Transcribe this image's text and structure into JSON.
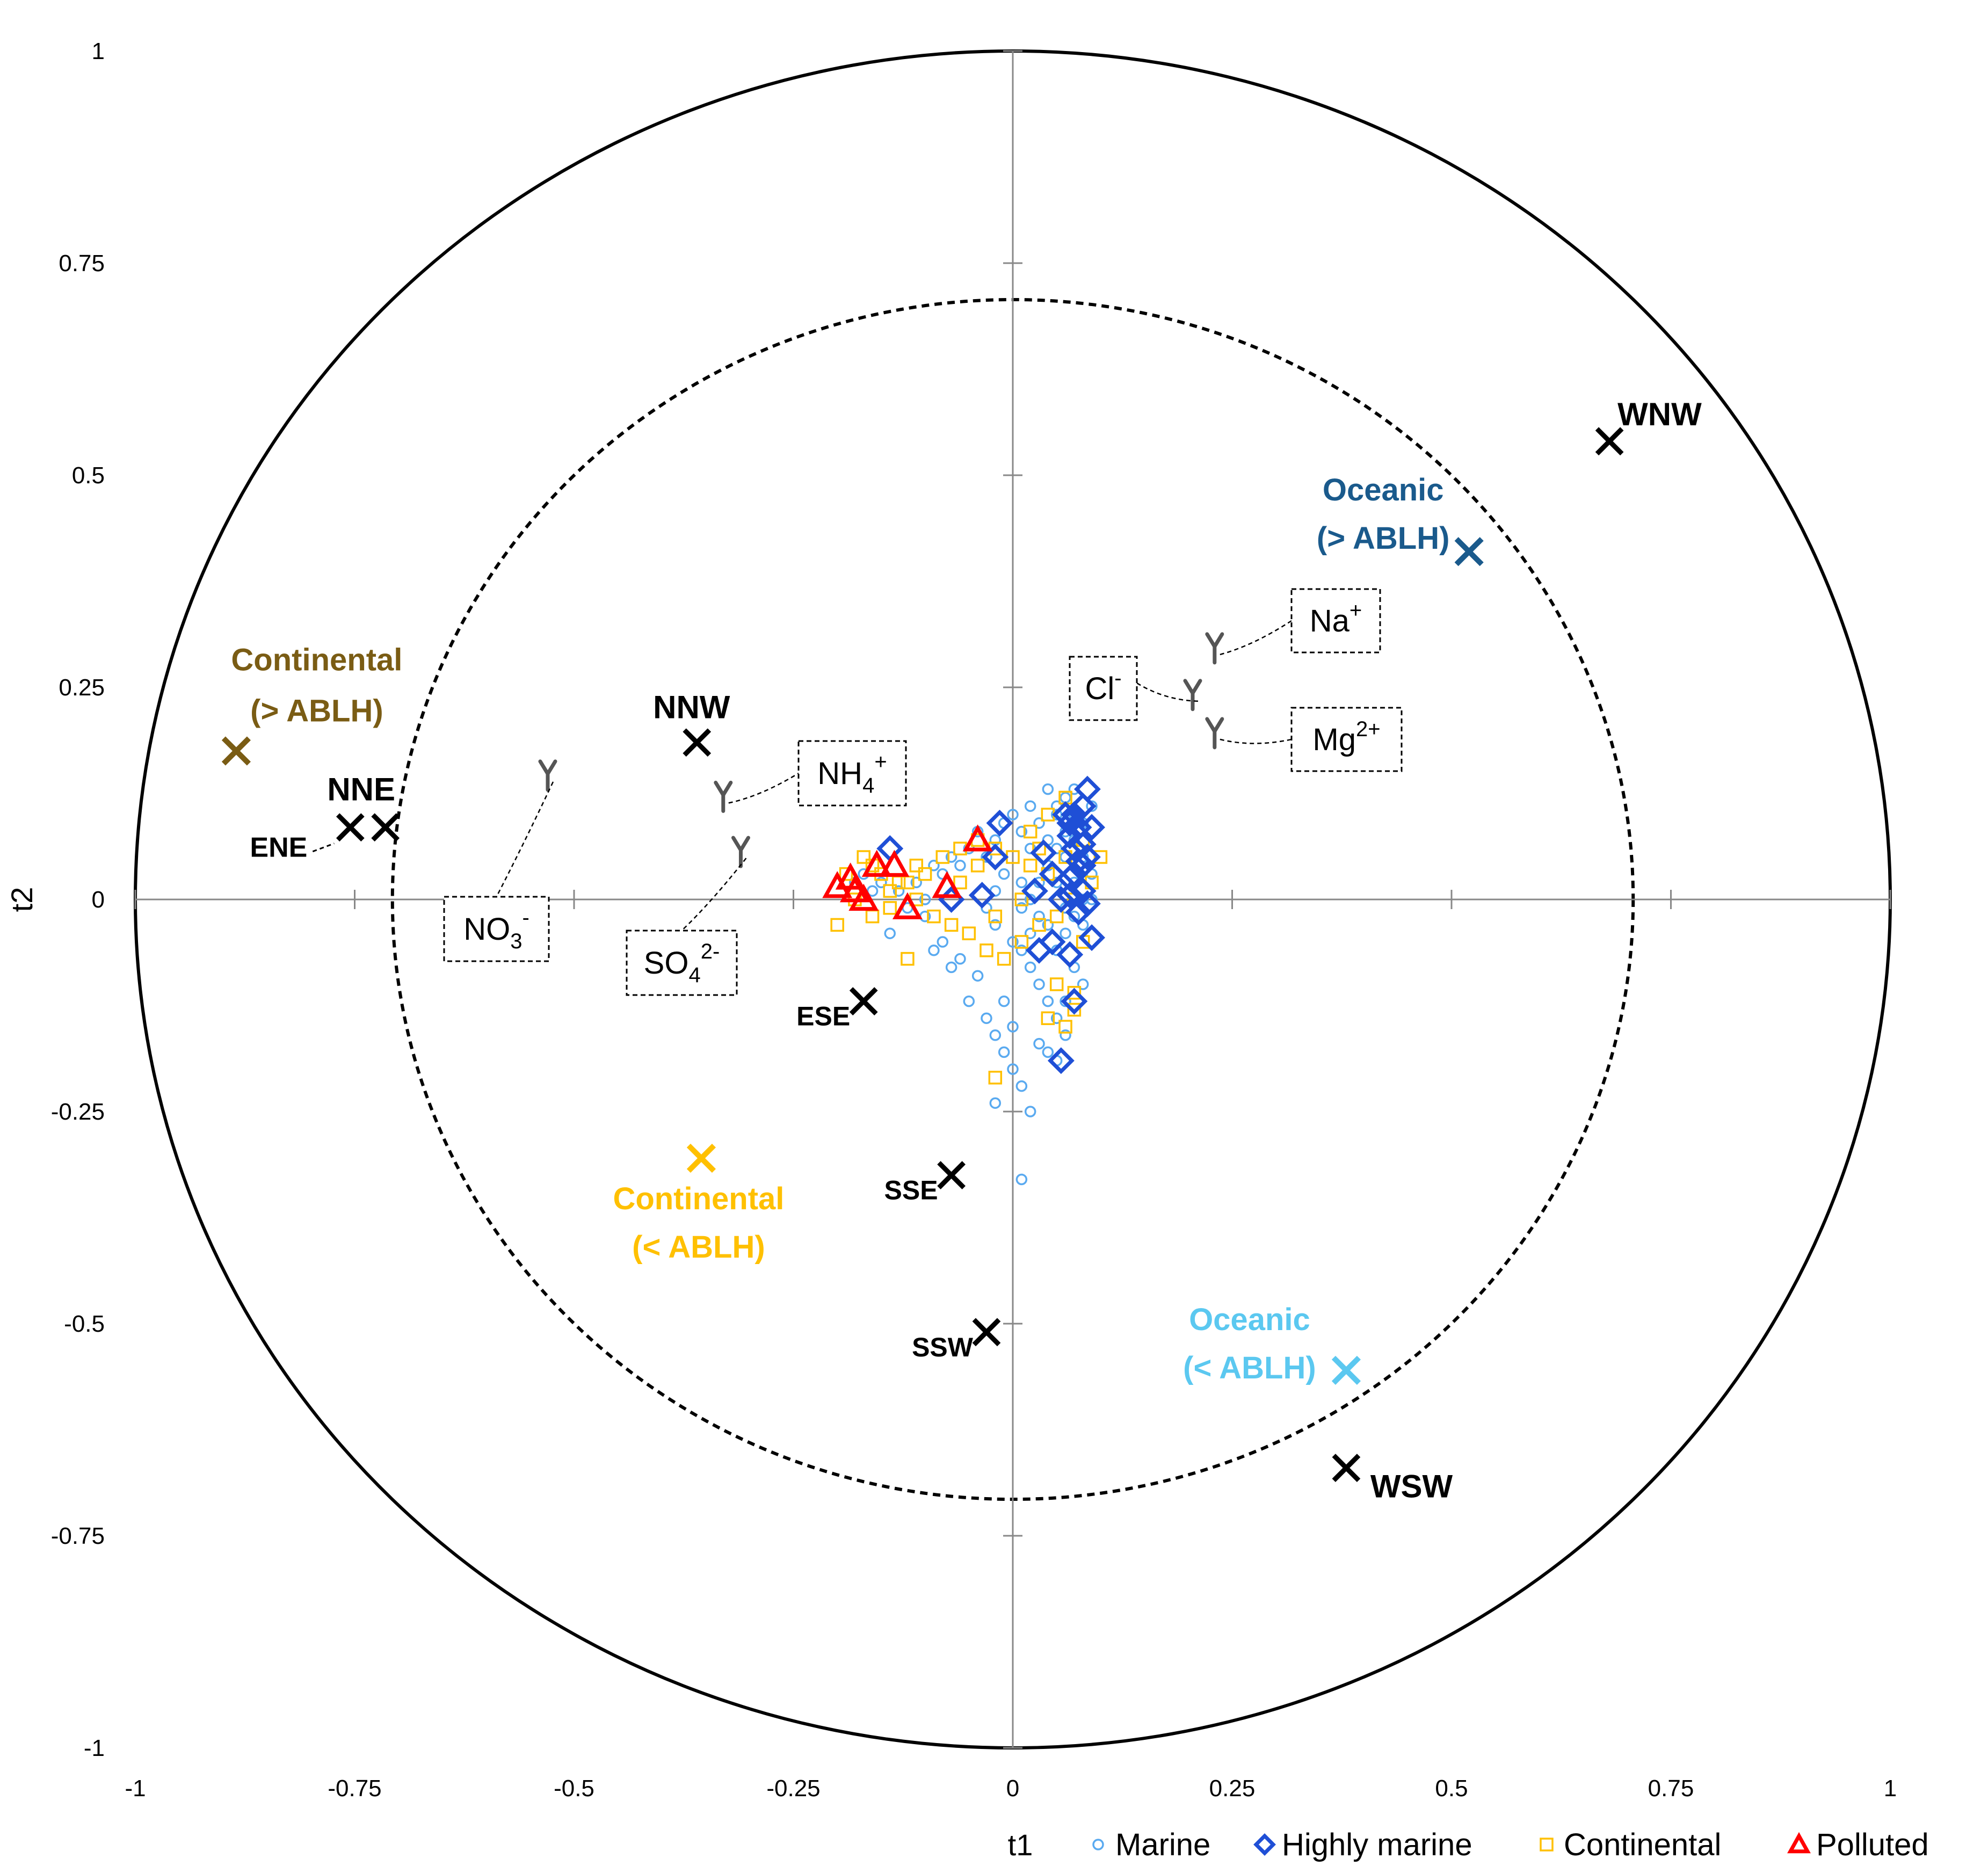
{
  "colors": {
    "marine": "#5aaaf0",
    "highly_marine": "#1f4fd6",
    "continental_pts": "#ffc000",
    "polluted": "#ff0000",
    "wind": "#000000",
    "cont_above": "#7a5c14",
    "cont_below": "#ffc000",
    "ocean_above": "#1a5a8c",
    "ocean_below": "#5bc8f0",
    "ion_symbol": "#555555"
  },
  "chart_data": {
    "type": "scatter",
    "title": "",
    "xlabel": "t1",
    "ylabel": "t2",
    "xlim": [
      -1,
      1
    ],
    "ylim": [
      -1,
      1
    ],
    "x_ticks": [
      -1,
      -0.75,
      -0.5,
      -0.25,
      0,
      0.25,
      0.5,
      0.75,
      1
    ],
    "y_ticks": [
      -1,
      -0.75,
      -0.5,
      -0.25,
      0,
      0.25,
      0.5,
      0.75,
      1
    ],
    "x_tick_labels": [
      "-1",
      "-0.75",
      "-0.5",
      "-0.25",
      "0",
      "0.25",
      "0.5",
      "0.75",
      "1"
    ],
    "y_tick_labels": [
      "-1",
      "-0.75",
      "-0.5",
      "-0.25",
      "0",
      "0.25",
      "0.5",
      "0.75",
      "1"
    ],
    "circles": [
      {
        "name": "unit-circle",
        "radius": 1,
        "style": "solid"
      },
      {
        "name": "half-variance-circle",
        "radius": 0.707,
        "style": "dashed"
      }
    ],
    "wind_sectors": [
      {
        "label": "WNW",
        "x": 0.68,
        "y": 0.54
      },
      {
        "label": "NNW",
        "x": -0.36,
        "y": 0.185
      },
      {
        "label": "NNE",
        "x": -0.715,
        "y": 0.085
      },
      {
        "label": "ENE",
        "x": -0.755,
        "y": 0.085
      },
      {
        "label": "ESE",
        "x": -0.17,
        "y": -0.12
      },
      {
        "label": "SSE",
        "x": -0.07,
        "y": -0.325
      },
      {
        "label": "SSW",
        "x": -0.03,
        "y": -0.51
      },
      {
        "label": "WSW",
        "x": 0.38,
        "y": -0.67
      }
    ],
    "air_mass_classes": [
      {
        "key": "cont_above",
        "line1": "Continental",
        "line2": "(> ABLH)",
        "x": -0.885,
        "y": 0.175
      },
      {
        "key": "cont_below",
        "line1": "Continental",
        "line2": "(< ABLH)",
        "x": -0.355,
        "y": -0.305
      },
      {
        "key": "ocean_above",
        "line1": "Oceanic",
        "line2": "(> ABLH)",
        "x": 0.52,
        "y": 0.41
      },
      {
        "key": "ocean_below",
        "line1": "Oceanic",
        "line2": "(< ABLH)",
        "x": 0.38,
        "y": -0.555
      }
    ],
    "ions": [
      {
        "name": "Na",
        "main": "Na",
        "sup": "+",
        "sub": "",
        "x": 0.23,
        "y": 0.295
      },
      {
        "name": "Cl",
        "main": "Cl",
        "sup": "-",
        "sub": "",
        "x": 0.205,
        "y": 0.24
      },
      {
        "name": "Mg",
        "main": "Mg",
        "sup": "2+",
        "sub": "",
        "x": 0.23,
        "y": 0.195
      },
      {
        "name": "NH4",
        "main": "NH",
        "sup": "+",
        "sub": "4",
        "x": -0.33,
        "y": 0.12
      },
      {
        "name": "NO3",
        "main": "NO",
        "sup": "-",
        "sub": "3",
        "x": -0.53,
        "y": 0.145
      },
      {
        "name": "SO4",
        "main": "SO",
        "sup": "2-",
        "sub": "4",
        "x": -0.31,
        "y": 0.055
      }
    ],
    "series": [
      {
        "name": "Marine",
        "symbol": "circle",
        "points": [
          [
            0.0,
            0.1
          ],
          [
            -0.01,
            0.09
          ],
          [
            0.01,
            0.08
          ],
          [
            -0.02,
            0.07
          ],
          [
            0.02,
            0.06
          ],
          [
            -0.03,
            0.05
          ],
          [
            -0.05,
            0.06
          ],
          [
            -0.07,
            0.05
          ],
          [
            -0.09,
            0.04
          ],
          [
            -0.11,
            0.02
          ],
          [
            -0.13,
            0.01
          ],
          [
            -0.15,
            0.02
          ],
          [
            -0.17,
            0.03
          ],
          [
            -0.12,
            -0.01
          ],
          [
            -0.1,
            -0.02
          ],
          [
            -0.08,
            -0.05
          ],
          [
            -0.06,
            -0.07
          ],
          [
            -0.04,
            -0.09
          ],
          [
            -0.05,
            -0.12
          ],
          [
            -0.03,
            -0.14
          ],
          [
            -0.02,
            -0.16
          ],
          [
            -0.01,
            -0.18
          ],
          [
            0.0,
            -0.2
          ],
          [
            0.01,
            -0.22
          ],
          [
            0.02,
            -0.25
          ],
          [
            -0.02,
            -0.24
          ],
          [
            0.01,
            -0.33
          ],
          [
            0.0,
            -0.05
          ],
          [
            0.01,
            -0.06
          ],
          [
            0.02,
            -0.08
          ],
          [
            0.03,
            -0.1
          ],
          [
            0.04,
            -0.12
          ],
          [
            0.05,
            -0.14
          ],
          [
            0.06,
            -0.16
          ],
          [
            0.04,
            -0.18
          ],
          [
            0.03,
            0.02
          ],
          [
            0.04,
            0.04
          ],
          [
            0.05,
            0.06
          ],
          [
            0.06,
            0.08
          ],
          [
            0.07,
            0.1
          ],
          [
            0.06,
            0.12
          ],
          [
            0.07,
            0.13
          ],
          [
            0.08,
            0.05
          ],
          [
            0.09,
            0.03
          ],
          [
            0.08,
            0.0
          ],
          [
            0.07,
            -0.02
          ],
          [
            0.06,
            -0.04
          ],
          [
            0.05,
            -0.06
          ],
          [
            0.04,
            -0.03
          ],
          [
            0.03,
            -0.02
          ],
          [
            0.02,
            0.0
          ],
          [
            0.01,
            0.02
          ],
          [
            -0.01,
            0.03
          ],
          [
            -0.02,
            0.01
          ],
          [
            -0.03,
            -0.01
          ],
          [
            0.05,
            0.1
          ],
          [
            0.06,
            0.05
          ],
          [
            0.07,
            0.07
          ],
          [
            0.08,
            0.09
          ],
          [
            0.09,
            0.11
          ],
          [
            0.05,
            0.02
          ],
          [
            0.06,
            -0.01
          ],
          [
            0.07,
            -0.08
          ],
          [
            0.08,
            -0.1
          ],
          [
            0.06,
            -0.12
          ],
          [
            0.04,
            0.07
          ],
          [
            0.03,
            0.09
          ],
          [
            0.02,
            0.11
          ],
          [
            -0.04,
            0.08
          ],
          [
            -0.06,
            0.04
          ],
          [
            -0.08,
            0.03
          ],
          [
            -0.1,
            0.0
          ],
          [
            -0.14,
            -0.04
          ],
          [
            -0.09,
            -0.06
          ],
          [
            -0.07,
            -0.08
          ],
          [
            -0.01,
            -0.12
          ],
          [
            0.0,
            -0.15
          ],
          [
            0.03,
            -0.17
          ],
          [
            0.05,
            -0.19
          ],
          [
            -0.16,
            0.01
          ],
          [
            -0.18,
            0.02
          ],
          [
            0.09,
            0.0
          ],
          [
            0.08,
            -0.03
          ],
          [
            0.07,
            0.02
          ],
          [
            0.06,
            0.09
          ],
          [
            0.05,
            0.11
          ],
          [
            0.04,
            0.13
          ],
          [
            -0.02,
            -0.03
          ],
          [
            0.01,
            -0.01
          ],
          [
            0.02,
            -0.04
          ]
        ]
      },
      {
        "name": "Highly marine",
        "symbol": "diamond",
        "points": [
          [
            0.085,
            0.13
          ],
          [
            0.07,
            0.1
          ],
          [
            0.065,
            0.09
          ],
          [
            0.075,
            0.085
          ],
          [
            0.08,
            0.11
          ],
          [
            0.065,
            0.075
          ],
          [
            0.09,
            0.085
          ],
          [
            0.07,
            0.06
          ],
          [
            0.08,
            0.065
          ],
          [
            0.075,
            0.045
          ],
          [
            0.065,
            0.025
          ],
          [
            0.08,
            0.01
          ],
          [
            0.085,
            -0.005
          ],
          [
            0.075,
            -0.015
          ],
          [
            0.09,
            -0.045
          ],
          [
            0.065,
            -0.065
          ],
          [
            0.07,
            -0.12
          ],
          [
            0.055,
            -0.19
          ],
          [
            0.035,
            0.055
          ],
          [
            0.045,
            0.03
          ],
          [
            0.025,
            0.01
          ],
          [
            0.055,
            0.0
          ],
          [
            0.03,
            -0.06
          ],
          [
            0.045,
            -0.05
          ],
          [
            0.065,
            0.005
          ],
          [
            -0.015,
            0.09
          ],
          [
            -0.02,
            0.05
          ],
          [
            -0.035,
            0.005
          ],
          [
            -0.07,
            0.0
          ],
          [
            -0.14,
            0.06
          ],
          [
            0.08,
            0.04
          ],
          [
            0.07,
            0.03
          ],
          [
            0.085,
            0.05
          ],
          [
            0.06,
            0.1
          ]
        ]
      },
      {
        "name": "Continental",
        "symbol": "square",
        "points": [
          [
            -0.2,
            -0.03
          ],
          [
            -0.18,
            0.0
          ],
          [
            -0.16,
            -0.02
          ],
          [
            -0.14,
            0.01
          ],
          [
            -0.12,
            0.02
          ],
          [
            -0.1,
            0.03
          ],
          [
            -0.08,
            0.05
          ],
          [
            -0.06,
            0.06
          ],
          [
            -0.04,
            0.07
          ],
          [
            -0.02,
            0.06
          ],
          [
            0.0,
            0.05
          ],
          [
            0.02,
            0.04
          ],
          [
            0.04,
            0.03
          ],
          [
            0.06,
            0.05
          ],
          [
            0.08,
            0.07
          ],
          [
            0.1,
            0.05
          ],
          [
            -0.17,
            0.05
          ],
          [
            -0.15,
            0.03
          ],
          [
            -0.13,
            0.02
          ],
          [
            -0.11,
            0.0
          ],
          [
            -0.09,
            -0.02
          ],
          [
            -0.07,
            -0.03
          ],
          [
            -0.05,
            -0.04
          ],
          [
            -0.03,
            -0.06
          ],
          [
            -0.01,
            -0.07
          ],
          [
            0.01,
            -0.05
          ],
          [
            0.03,
            -0.03
          ],
          [
            0.05,
            -0.02
          ],
          [
            0.07,
            0.0
          ],
          [
            0.06,
            0.12
          ],
          [
            0.04,
            0.1
          ],
          [
            0.02,
            0.08
          ],
          [
            -0.12,
            -0.07
          ],
          [
            0.07,
            -0.13
          ],
          [
            0.06,
            -0.15
          ],
          [
            0.07,
            -0.11
          ],
          [
            -0.02,
            -0.21
          ],
          [
            0.04,
            -0.14
          ],
          [
            0.05,
            -0.1
          ],
          [
            -0.06,
            0.02
          ],
          [
            -0.04,
            0.04
          ],
          [
            -0.16,
            0.04
          ],
          [
            -0.19,
            0.03
          ],
          [
            0.03,
            0.06
          ],
          [
            0.01,
            0.0
          ],
          [
            0.09,
            0.02
          ],
          [
            0.08,
            -0.05
          ],
          [
            -0.02,
            -0.02
          ],
          [
            -0.11,
            0.04
          ],
          [
            -0.14,
            -0.01
          ]
        ]
      },
      {
        "name": "Polluted",
        "symbol": "triangle",
        "points": [
          [
            -0.2,
            0.015
          ],
          [
            -0.185,
            0.025
          ],
          [
            -0.18,
            0.01
          ],
          [
            -0.17,
            0.0
          ],
          [
            -0.155,
            0.04
          ],
          [
            -0.135,
            0.04
          ],
          [
            -0.12,
            -0.01
          ],
          [
            -0.075,
            0.015
          ],
          [
            -0.04,
            0.07
          ]
        ]
      }
    ],
    "legend": {
      "position": "bottom-right",
      "items": [
        {
          "label": "Marine",
          "symbol": "circle"
        },
        {
          "label": "Highly marine",
          "symbol": "diamond"
        },
        {
          "label": "Continental",
          "symbol": "square"
        },
        {
          "label": "Polluted",
          "symbol": "triangle"
        }
      ]
    }
  }
}
